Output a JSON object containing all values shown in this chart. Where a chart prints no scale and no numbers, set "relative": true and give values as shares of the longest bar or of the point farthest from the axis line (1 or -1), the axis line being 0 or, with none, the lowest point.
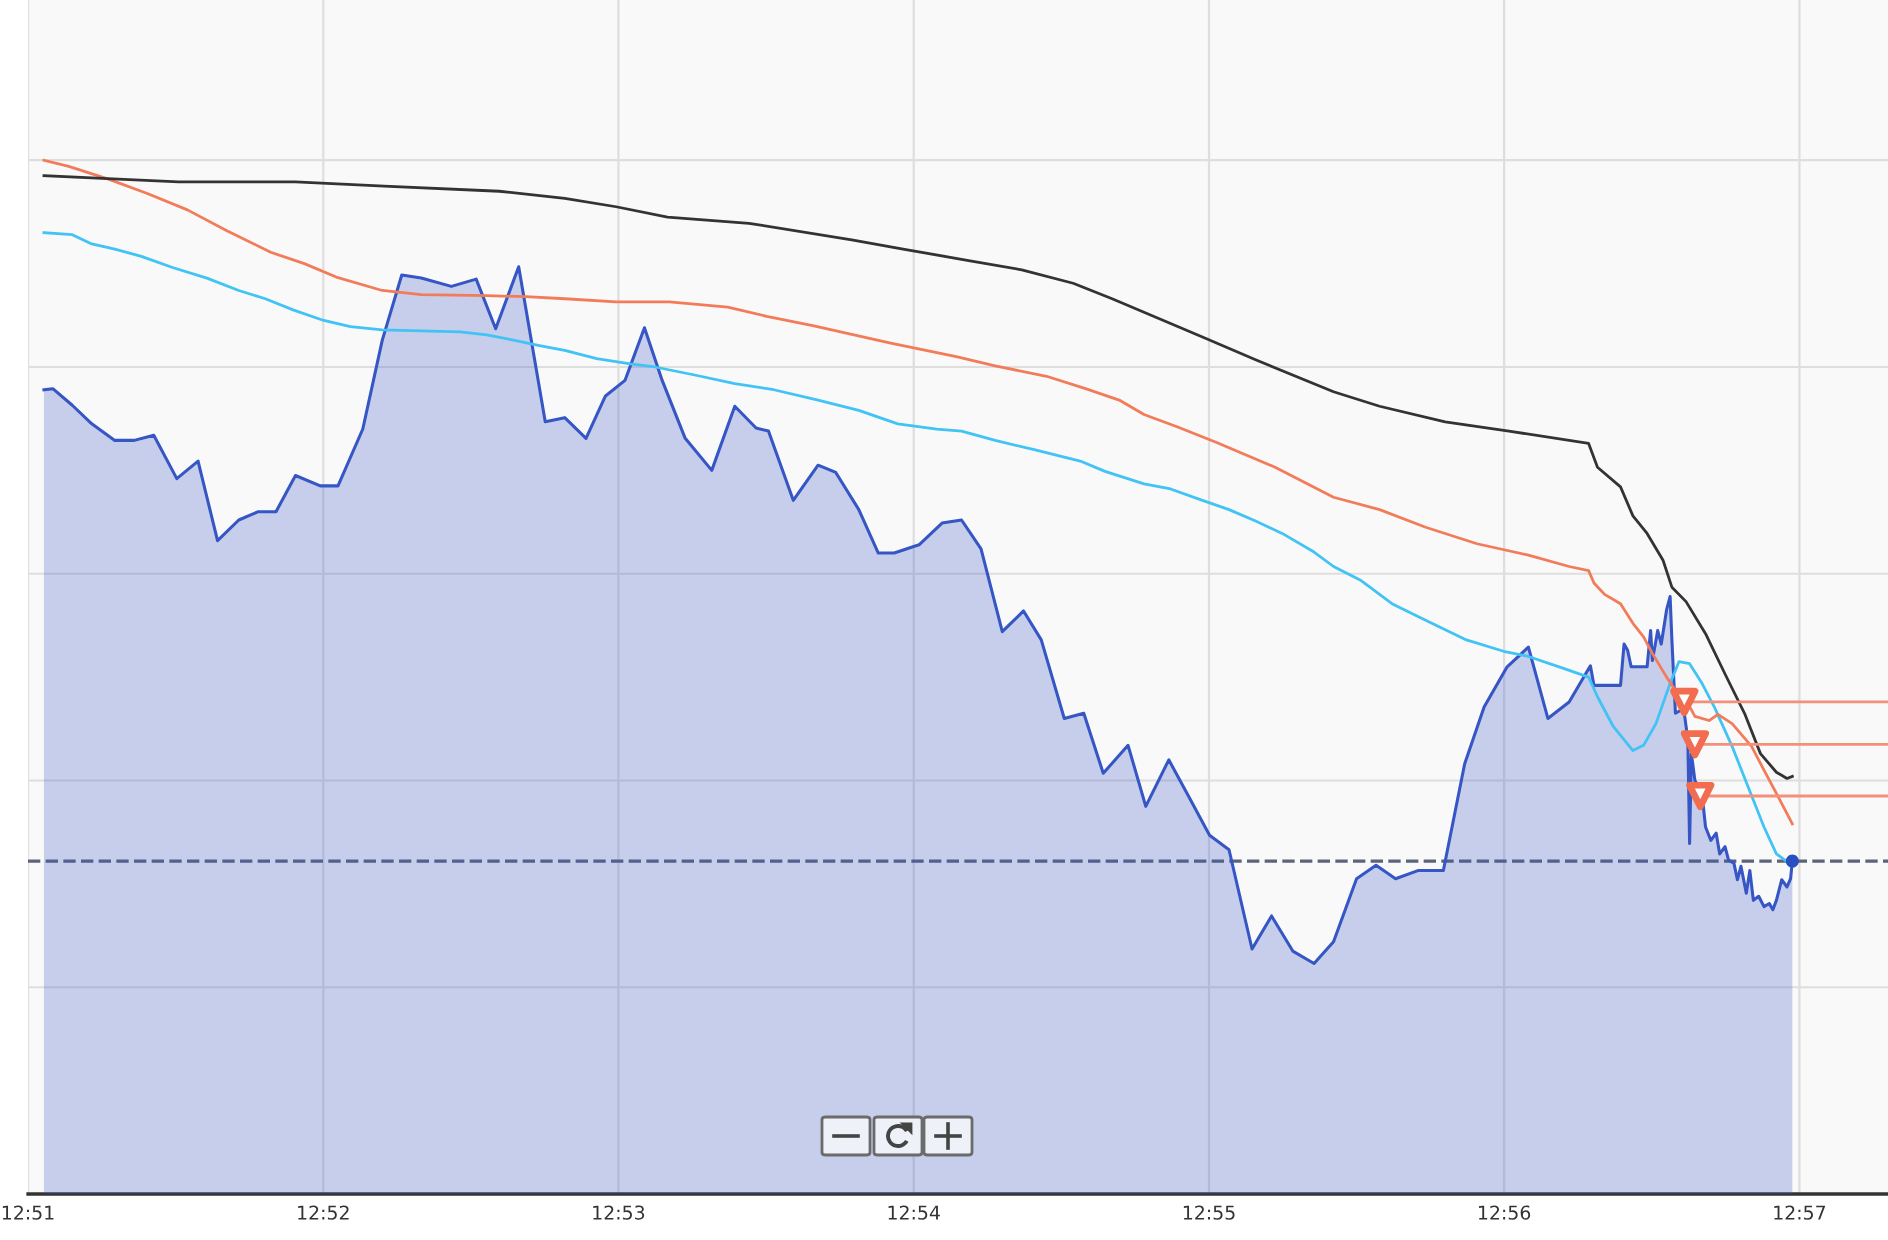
{
  "chart_data": {
    "type": "area",
    "relative": true,
    "grid": true,
    "xlim": [
      12.85,
      12.955
    ],
    "xticks": [
      {
        "value": 12.85,
        "label": "12:51"
      },
      {
        "value": 12.86667,
        "label": "12:52"
      },
      {
        "value": 12.88333,
        "label": "12:53"
      },
      {
        "value": 12.9,
        "label": "12:54"
      },
      {
        "value": 12.91667,
        "label": "12:55"
      },
      {
        "value": 12.93333,
        "label": "12:56"
      },
      {
        "value": 12.95,
        "label": "12:57"
      }
    ],
    "ref_lines": [
      {
        "axis": "y",
        "value": 0.322,
        "line_style": "dashed",
        "color": "#5b6478"
      }
    ],
    "series": [
      {
        "color": "#3556c4",
        "x": [
          12.8509,
          12.8514,
          12.8525,
          12.8536,
          12.8549,
          12.856,
          12.8571,
          12.8584,
          12.8596,
          12.8607,
          12.8619,
          12.863,
          12.864,
          12.8651,
          12.8665,
          12.8675,
          12.8689,
          12.87,
          12.8711,
          12.8722,
          12.8739,
          12.8753,
          12.8764,
          12.8777,
          12.8792,
          12.8803,
          12.8815,
          12.8826,
          12.8837,
          12.8848,
          12.8858,
          12.8871,
          12.8886,
          12.8899,
          12.8911,
          12.8918,
          12.8932,
          12.8946,
          12.8956,
          12.8969,
          12.898,
          12.8989,
          12.9003,
          12.9016,
          12.9027,
          12.9038,
          12.905,
          12.9062,
          12.9072,
          12.9085,
          12.9096,
          12.9107,
          12.9121,
          12.9131,
          12.9144,
          12.9156,
          12.9167,
          12.9178,
          12.9191,
          12.9202,
          12.9214,
          12.9226,
          12.9237,
          12.925,
          12.9261,
          12.9272,
          12.9285,
          12.9299,
          12.9311,
          12.9322,
          12.9335,
          12.9347,
          12.9358,
          12.937,
          12.9382,
          12.9384,
          12.9399,
          12.9401,
          12.9403,
          12.9405,
          12.9414,
          12.9416,
          12.9417,
          12.942,
          12.9422,
          12.9425,
          12.9427,
          12.9428,
          12.943,
          12.9433,
          12.9435,
          12.9437,
          12.9438,
          12.9439,
          12.9441,
          12.9445,
          12.9447,
          12.945,
          12.9453,
          12.9455,
          12.9458,
          12.946,
          12.9463,
          12.9465,
          12.9467,
          12.947,
          12.9472,
          12.9474,
          12.9477,
          12.948,
          12.9483,
          12.9485,
          12.9487,
          12.949,
          12.9493,
          12.9495,
          12.9496
        ],
        "values": [
          0.778,
          0.779,
          0.763,
          0.745,
          0.729,
          0.729,
          0.734,
          0.692,
          0.709,
          0.632,
          0.652,
          0.66,
          0.66,
          0.695,
          0.685,
          0.685,
          0.74,
          0.826,
          0.889,
          0.886,
          0.878,
          0.885,
          0.837,
          0.897,
          0.747,
          0.751,
          0.731,
          0.772,
          0.787,
          0.838,
          0.787,
          0.731,
          0.7,
          0.762,
          0.741,
          0.738,
          0.671,
          0.705,
          0.698,
          0.662,
          0.62,
          0.62,
          0.628,
          0.649,
          0.652,
          0.624,
          0.544,
          0.564,
          0.536,
          0.46,
          0.465,
          0.407,
          0.434,
          0.375,
          0.42,
          0.382,
          0.347,
          0.333,
          0.237,
          0.269,
          0.235,
          0.223,
          0.244,
          0.305,
          0.318,
          0.305,
          0.313,
          0.313,
          0.416,
          0.471,
          0.51,
          0.529,
          0.46,
          0.476,
          0.511,
          0.492,
          0.492,
          0.532,
          0.526,
          0.51,
          0.51,
          0.545,
          0.516,
          0.545,
          0.532,
          0.565,
          0.578,
          0.536,
          0.465,
          0.468,
          0.465,
          0.44,
          0.339,
          0.426,
          0.4,
          0.387,
          0.355,
          0.342,
          0.349,
          0.329,
          0.336,
          0.323,
          0.32,
          0.304,
          0.317,
          0.291,
          0.313,
          0.284,
          0.288,
          0.278,
          0.281,
          0.275,
          0.284,
          0.304,
          0.297,
          0.305,
          0.322
        ]
      },
      {
        "type": "line",
        "color": "#42c3f5",
        "x": [
          12.8509,
          12.8525,
          12.8536,
          12.8549,
          12.8564,
          12.8582,
          12.8601,
          12.8619,
          12.8634,
          12.865,
          12.8667,
          12.8682,
          12.87,
          12.8722,
          12.8744,
          12.8759,
          12.8774,
          12.8788,
          12.8803,
          12.8821,
          12.884,
          12.8854,
          12.8877,
          12.8899,
          12.8921,
          12.8946,
          12.8969,
          12.8991,
          12.9013,
          12.9027,
          12.9046,
          12.9068,
          12.9094,
          12.9108,
          12.913,
          12.9145,
          12.9163,
          12.9178,
          12.9193,
          12.9208,
          12.9226,
          12.9237,
          12.9252,
          12.927,
          12.9289,
          12.9312,
          12.9333,
          12.9347,
          12.9366,
          12.9381,
          12.9386,
          12.9395,
          12.9406,
          12.9412,
          12.9419,
          12.9427,
          12.9432,
          12.9438,
          12.9445,
          12.9452,
          12.9462,
          12.9471,
          12.948,
          12.9487,
          12.9495
        ],
        "values": [
          0.93,
          0.928,
          0.919,
          0.914,
          0.907,
          0.896,
          0.886,
          0.874,
          0.866,
          0.855,
          0.845,
          0.839,
          0.836,
          0.835,
          0.834,
          0.831,
          0.826,
          0.821,
          0.816,
          0.808,
          0.803,
          0.8,
          0.792,
          0.784,
          0.778,
          0.768,
          0.758,
          0.745,
          0.74,
          0.738,
          0.729,
          0.72,
          0.709,
          0.699,
          0.687,
          0.682,
          0.671,
          0.662,
          0.651,
          0.639,
          0.621,
          0.607,
          0.594,
          0.571,
          0.555,
          0.536,
          0.525,
          0.52,
          0.509,
          0.5,
          0.481,
          0.452,
          0.429,
          0.434,
          0.455,
          0.494,
          0.515,
          0.513,
          0.494,
          0.471,
          0.433,
          0.394,
          0.355,
          0.329,
          0.319
        ]
      },
      {
        "type": "line",
        "color": "#f27c5a",
        "x": [
          12.8509,
          12.8523,
          12.8545,
          12.8567,
          12.859,
          12.8612,
          12.8637,
          12.8656,
          12.8674,
          12.87,
          12.8722,
          12.8759,
          12.8781,
          12.8803,
          12.8832,
          12.8862,
          12.8895,
          12.8917,
          12.8943,
          12.8987,
          12.9024,
          12.9046,
          12.9075,
          12.9097,
          12.9116,
          12.913,
          12.9149,
          12.9171,
          12.9204,
          12.9237,
          12.9263,
          12.9289,
          12.9318,
          12.9347,
          12.937,
          12.9381,
          12.9384,
          12.939,
          12.9399,
          12.9406,
          12.9412,
          12.9417,
          12.9425,
          12.943,
          12.9436,
          12.9441,
          12.9449,
          12.9454,
          12.9462,
          12.9473,
          12.948,
          12.9489,
          12.9496
        ],
        "values": [
          1.0,
          0.994,
          0.982,
          0.968,
          0.952,
          0.932,
          0.911,
          0.9,
          0.887,
          0.874,
          0.87,
          0.869,
          0.868,
          0.866,
          0.863,
          0.863,
          0.858,
          0.849,
          0.84,
          0.823,
          0.81,
          0.801,
          0.791,
          0.779,
          0.768,
          0.754,
          0.742,
          0.727,
          0.703,
          0.674,
          0.662,
          0.645,
          0.629,
          0.618,
          0.607,
          0.603,
          0.591,
          0.58,
          0.571,
          0.552,
          0.539,
          0.523,
          0.5,
          0.487,
          0.478,
          0.462,
          0.458,
          0.464,
          0.455,
          0.433,
          0.41,
          0.381,
          0.358
        ]
      },
      {
        "type": "line",
        "color": "#333333",
        "x": [
          12.8509,
          12.8548,
          12.8585,
          12.8651,
          12.8701,
          12.8766,
          12.8803,
          12.8832,
          12.8861,
          12.8907,
          12.8965,
          12.8994,
          12.9031,
          12.9061,
          12.909,
          12.9112,
          12.9134,
          12.9163,
          12.9193,
          12.9237,
          12.9263,
          12.93,
          12.9336,
          12.9381,
          12.9386,
          12.9399,
          12.9406,
          12.9414,
          12.9423,
          12.9428,
          12.9436,
          12.9447,
          12.9458,
          12.9469,
          12.9478,
          12.9487,
          12.9493,
          12.9496
        ],
        "values": [
          0.985,
          0.982,
          0.979,
          0.979,
          0.975,
          0.97,
          0.963,
          0.955,
          0.945,
          0.939,
          0.923,
          0.914,
          0.903,
          0.894,
          0.881,
          0.866,
          0.85,
          0.829,
          0.807,
          0.776,
          0.762,
          0.747,
          0.738,
          0.726,
          0.703,
          0.684,
          0.656,
          0.639,
          0.613,
          0.587,
          0.573,
          0.542,
          0.503,
          0.465,
          0.426,
          0.408,
          0.402,
          0.404
        ]
      },
      {
        "type": "line",
        "color": "#f4907a",
        "x": [
          12.9435,
          12.955
        ],
        "values": [
          0.476,
          0.476
        ]
      },
      {
        "type": "line",
        "color": "#f4907a",
        "x": [
          12.9441,
          12.955
        ],
        "values": [
          0.435,
          0.435
        ]
      },
      {
        "type": "line",
        "color": "#f4907a",
        "x": [
          12.9444,
          12.955
        ],
        "values": [
          0.385,
          0.385
        ]
      },
      {
        "type": "scatter",
        "color": "#f26c4f",
        "marker": "triangle",
        "x": [
          12.9435,
          12.9441,
          12.9444
        ],
        "values": [
          0.476,
          0.435,
          0.385
        ]
      },
      {
        "type": "scatter",
        "color": "#2a4fc0",
        "marker": "circle",
        "x": [
          12.9496
        ],
        "values": [
          0.322
        ]
      }
    ]
  }
}
